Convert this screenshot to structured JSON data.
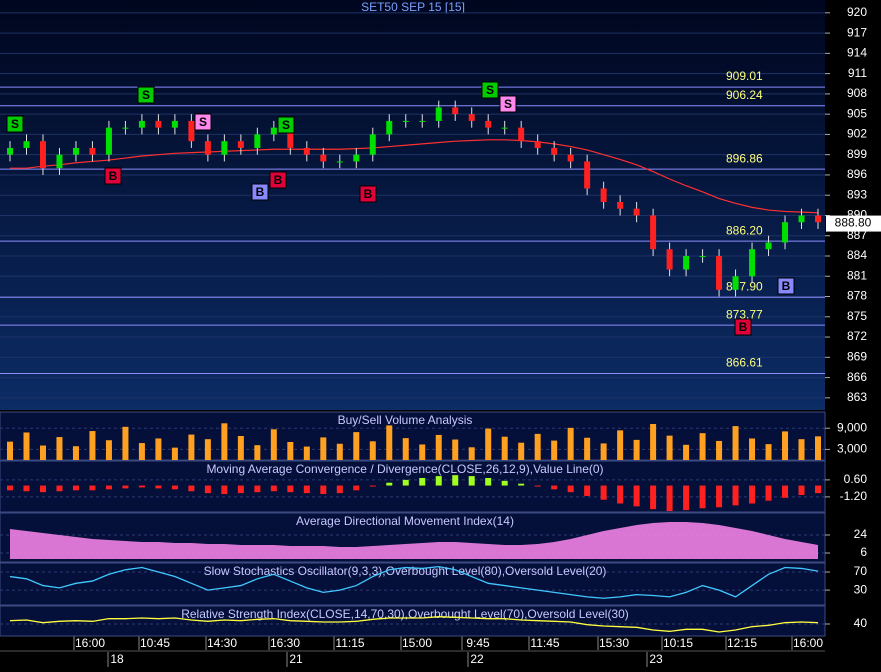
{
  "chart_data": [
    {
      "type": "candlestick",
      "title": "SET50 SEP 15   [15]",
      "open": [
        899,
        900,
        901,
        897,
        899,
        900,
        899,
        903,
        903,
        904,
        903,
        904,
        901,
        899,
        901,
        900,
        902,
        903,
        900,
        899,
        898,
        898,
        899,
        902,
        904,
        904,
        904,
        906,
        905,
        904,
        903,
        903,
        901,
        900,
        899,
        898,
        894,
        892,
        891,
        890,
        885,
        882,
        884,
        884,
        879,
        881,
        885,
        886,
        889,
        890
      ],
      "high": [
        901,
        902,
        902,
        900,
        901,
        901,
        904,
        904,
        905,
        905,
        905,
        905,
        902,
        902,
        902,
        903,
        904,
        904,
        901,
        900,
        899,
        900,
        903,
        905,
        905,
        905,
        907,
        907,
        906,
        905,
        904,
        904,
        902,
        901,
        900,
        899,
        895,
        893,
        892,
        891,
        886,
        885,
        885,
        885,
        882,
        886,
        887,
        890,
        891,
        891
      ],
      "low": [
        898,
        899,
        896,
        896,
        898,
        898,
        898,
        902,
        902,
        902,
        902,
        900,
        898,
        898,
        899,
        899,
        901,
        899,
        898,
        897,
        897,
        897,
        898,
        901,
        903,
        903,
        903,
        904,
        903,
        902,
        902,
        900,
        899,
        898,
        897,
        893,
        891,
        890,
        889,
        884,
        881,
        881,
        883,
        878,
        878,
        880,
        884,
        885,
        888,
        888
      ],
      "close": [
        900,
        901,
        897,
        899,
        900,
        899,
        903,
        903,
        904,
        903,
        904,
        901,
        899,
        901,
        900,
        902,
        903,
        900,
        899,
        898,
        898,
        899,
        902,
        904,
        904,
        904,
        906,
        905,
        904,
        903,
        903,
        901,
        900,
        899,
        898,
        894,
        892,
        891,
        890,
        885,
        882,
        884,
        884,
        879,
        881,
        885,
        886,
        889,
        890,
        889
      ],
      "up_color": "#00e000",
      "down_color": "#ff2020",
      "overlay": {
        "color": "#ff3030",
        "values": [
          897,
          897,
          897.3,
          897.5,
          897.8,
          898,
          898.2,
          898.5,
          898.8,
          899,
          899.2,
          899.3,
          899.4,
          899.5,
          899.6,
          899.7,
          899.8,
          899.8,
          899.8,
          899.8,
          899.8,
          899.9,
          900,
          900.2,
          900.4,
          900.6,
          900.8,
          901,
          901.1,
          901.2,
          901.2,
          901.1,
          900.9,
          900.6,
          900.2,
          899.7,
          899,
          898.3,
          897.5,
          896.5,
          895.4,
          894.4,
          893.5,
          892.5,
          891.8,
          891.2,
          890.8,
          890.6,
          890.5,
          890.4
        ]
      },
      "ylim": [
        861.2,
        921.9
      ],
      "yticks": [
        920,
        917,
        914,
        911,
        908,
        905,
        902,
        899,
        896,
        893,
        890,
        887,
        884,
        881,
        878,
        875,
        872,
        869,
        866,
        863
      ],
      "levels": [
        909.01,
        906.24,
        896.86,
        {
          "value": 886.2,
          "label": "886.20"
        },
        {
          "value": 877.9,
          "label": "877.90"
        },
        873.77,
        866.61
      ],
      "last_price": {
        "value": 888.8,
        "label": "888.80"
      },
      "signals": [
        "S",
        "S",
        "S",
        "S",
        "S",
        "S",
        "B",
        "B",
        "B",
        "B",
        "B",
        "B"
      ],
      "time_labels": [
        "16:00",
        "10:45",
        "14:30",
        "16:30",
        "11:15",
        "15:00",
        "9:45",
        "11:45",
        "15:30",
        "10:15",
        "12:15",
        "16:00"
      ],
      "date_labels": [
        "18",
        "21",
        "22",
        "23"
      ]
    },
    {
      "type": "bar",
      "title": "Buy/Sell Volume Analysis",
      "color": "#ffa020",
      "values": [
        5200,
        7800,
        4100,
        6500,
        3900,
        8200,
        5600,
        9400,
        4800,
        6100,
        3500,
        7200,
        5900,
        10400,
        6800,
        4200,
        8700,
        5100,
        3800,
        6400,
        4600,
        7900,
        5300,
        9800,
        6200,
        4400,
        7100,
        5800,
        3600,
        8900,
        6600,
        4900,
        7400,
        5500,
        9100,
        6300,
        4700,
        8400,
        5700,
        10200,
        6900,
        4300,
        7600,
        5400,
        9600,
        6100,
        4500,
        8100,
        5900,
        6700
      ],
      "ylim": [
        0,
        13600
      ],
      "yticks": [
        {
          "value": 9000,
          "label": "9,000"
        },
        {
          "value": 3000,
          "label": "3,000"
        }
      ]
    },
    {
      "type": "bar",
      "title": "Moving Average Convergence / Divergence(CLOSE,26,12,9),Value Line(0)",
      "color": "#a0ff20",
      "negative_color": "#ff2020",
      "values": [
        -0.5,
        -0.6,
        -0.7,
        -0.6,
        -0.5,
        -0.5,
        -0.4,
        -0.3,
        -0.2,
        -0.3,
        -0.4,
        -0.6,
        -0.8,
        -0.9,
        -0.8,
        -0.7,
        -0.6,
        -0.7,
        -0.8,
        -0.9,
        -0.8,
        -0.5,
        -0.1,
        0.3,
        0.6,
        0.8,
        1.0,
        1.1,
        1.0,
        0.8,
        0.5,
        0.2,
        -0.1,
        -0.4,
        -0.7,
        -1.1,
        -1.5,
        -1.9,
        -2.2,
        -2.5,
        -2.7,
        -2.6,
        -2.4,
        -2.3,
        -2.1,
        -1.9,
        -1.6,
        -1.3,
        -1.0,
        -0.8
      ],
      "ylim": [
        -2.8,
        2.6
      ],
      "yticks": [
        {
          "value": 0.6,
          "label": "0.60"
        },
        {
          "value": -1.2,
          "label": "-1.20"
        }
      ]
    },
    {
      "type": "area",
      "title": "Average Directional Movement Index(14)",
      "color": "#ff88ee",
      "values": [
        30,
        28,
        26,
        24,
        22,
        20,
        19,
        18,
        17,
        17,
        16,
        16,
        15,
        15,
        14,
        14,
        14,
        13,
        13,
        13,
        12,
        12,
        13,
        14,
        15,
        16,
        17,
        17,
        16,
        15,
        14,
        14,
        15,
        17,
        20,
        24,
        28,
        31,
        34,
        36,
        37,
        37,
        36,
        34,
        31,
        28,
        24,
        20,
        17,
        14
      ],
      "ylim": [
        -3,
        46
      ],
      "yticks": [
        24,
        6
      ]
    },
    {
      "type": "line",
      "title": "Slow Stochastics Oscillator(9,3,3),Overbought Level(80),Oversold Level(20)",
      "color": "#40c8ff",
      "values": [
        60,
        55,
        40,
        35,
        45,
        50,
        65,
        75,
        80,
        70,
        60,
        45,
        30,
        35,
        40,
        55,
        65,
        50,
        35,
        25,
        30,
        40,
        60,
        75,
        80,
        78,
        82,
        75,
        60,
        45,
        40,
        35,
        30,
        25,
        20,
        15,
        12,
        15,
        20,
        18,
        15,
        25,
        40,
        30,
        15,
        40,
        65,
        80,
        78,
        72
      ],
      "ylim": [
        -3,
        90
      ],
      "yticks": [
        70,
        30
      ]
    },
    {
      "type": "line",
      "title": "Relative Strength Index(CLOSE,14,70,30),Overbought Level(70),Oversold Level(30)",
      "color": "#ffff40",
      "values": [
        45,
        46,
        42,
        44,
        45,
        44,
        48,
        48,
        49,
        48,
        49,
        46,
        44,
        46,
        45,
        47,
        48,
        45,
        44,
        43,
        43,
        44,
        47,
        49,
        49,
        49,
        51,
        50,
        49,
        48,
        48,
        46,
        45,
        44,
        43,
        39,
        37,
        36,
        35,
        31,
        29,
        32,
        32,
        28,
        31,
        36,
        38,
        42,
        43,
        42
      ],
      "ylim": [
        22,
        67
      ],
      "yticks": [
        40
      ]
    }
  ]
}
